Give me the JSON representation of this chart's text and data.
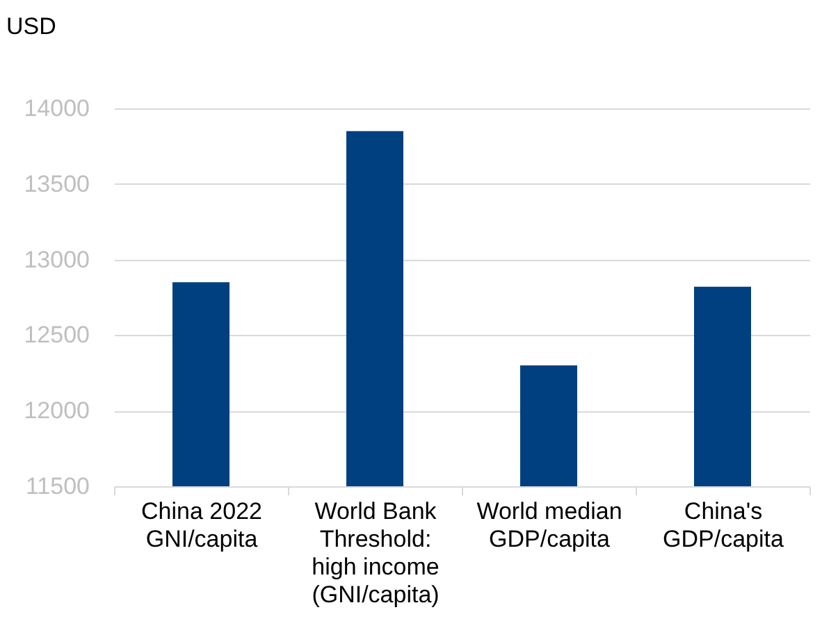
{
  "chart_data": {
    "type": "bar",
    "ylabel": "USD",
    "categories": [
      "China 2022\nGNI/capita",
      "World Bank\nThreshold:\nhigh income\n(GNI/capita)",
      "World median\nGDP/capita",
      "China's\nGDP/capita"
    ],
    "values": [
      12850,
      13850,
      12300,
      12820
    ],
    "color": "#004080",
    "ylim": [
      11500,
      14000
    ],
    "yticks": [
      11500,
      12000,
      12500,
      13000,
      13500,
      14000
    ],
    "grid": "y"
  }
}
